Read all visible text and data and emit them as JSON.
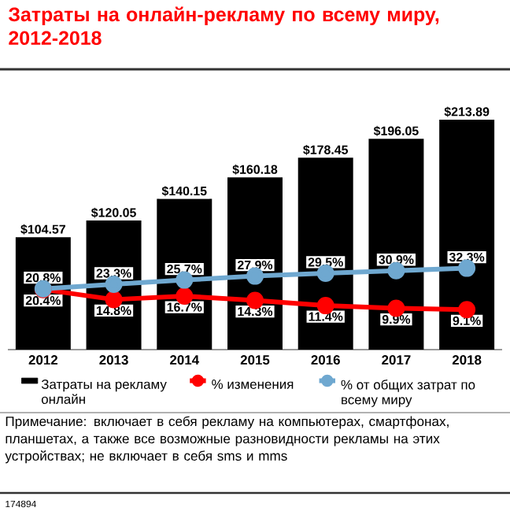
{
  "chart_data": {
    "type": "bar",
    "title": "Затраты на онлайн-рекламу по всему миру, 2012-2018",
    "categories": [
      "2012",
      "2013",
      "2014",
      "2015",
      "2016",
      "2017",
      "2018"
    ],
    "tick_labels": "x",
    "legend": "bottom",
    "marker": "circle",
    "series": [
      {
        "name": "Затраты на рекламу онлайн",
        "color": "#000000",
        "values": [
          104.57,
          120.05,
          140.15,
          160.18,
          178.45,
          196.05,
          213.89
        ],
        "value_labels": [
          "$104.57",
          "$120.05",
          "$140.15",
          "$160.18",
          "$178.45",
          "$196.05",
          "$213.89"
        ]
      },
      {
        "name": "% изменения",
        "type": "line",
        "axis": "y2",
        "color": "#ff0000",
        "values": [
          20.4,
          14.8,
          16.7,
          14.3,
          11.4,
          9.9,
          9.1
        ],
        "value_labels": [
          "20.4%",
          "14.8%",
          "16.7%",
          "14.3%",
          "11.4%",
          "9.9%",
          "9.1%"
        ]
      },
      {
        "name": "% от общих затрат по всему миру",
        "type": "line",
        "axis": "y2",
        "color": "#6fa8d0",
        "values": [
          20.8,
          23.3,
          25.7,
          27.9,
          29.5,
          30.9,
          32.3
        ],
        "value_labels": [
          "20.8%",
          "23.3%",
          "25.7%",
          "27.9%",
          "29.5%",
          "30.9%",
          "32.3%"
        ]
      }
    ],
    "annotations": [
      "Примечание: включает в себя рекламу на компьютерах, смартфонах, планшетах, а также все возможные разновидности рекламы на этих устройствах; не включает в себя sms и mms",
      "174894"
    ]
  }
}
